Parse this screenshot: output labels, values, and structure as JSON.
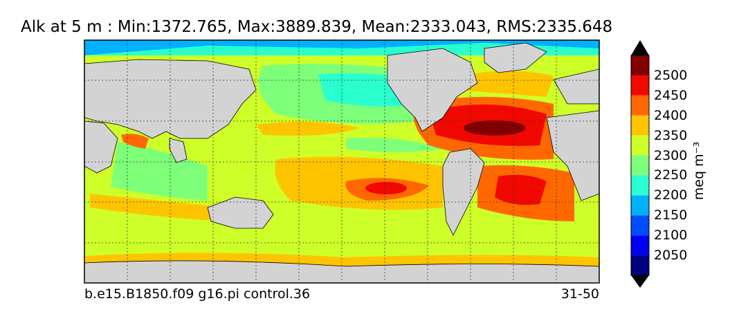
{
  "title": "Alk at 5 m : Min:1372.765, Max:3889.839, Mean:2333.043, RMS:2335.648",
  "run_label": "b.e15.B1850.f09 g16.pi control.36",
  "years_label": "31-50",
  "colorbar": {
    "units": "meq m⁻³",
    "ticks": [
      "2500",
      "2450",
      "2400",
      "2350",
      "2300",
      "2250",
      "2200",
      "2150",
      "2100",
      "2050"
    ],
    "colors": [
      "#000080",
      "#0000f1",
      "#004dff",
      "#00b1ff",
      "#29ffce",
      "#7dff7a",
      "#ceff29",
      "#ffc400",
      "#ff6800",
      "#f10800",
      "#800000"
    ],
    "land_color": "#d3d3d3"
  }
}
